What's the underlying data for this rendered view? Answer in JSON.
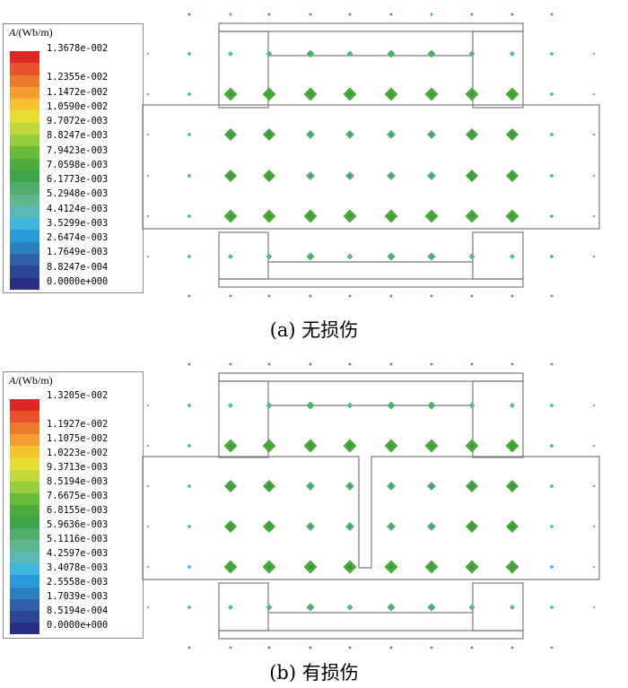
{
  "colorbar_colors": [
    "#dd2726",
    "#e8512c",
    "#ec7b2d",
    "#f29e30",
    "#f4c430",
    "#e8dd34",
    "#c2d83a",
    "#97cc3c",
    "#6bbb3b",
    "#4cad3e",
    "#3fa447",
    "#52ad6b",
    "#5fb691",
    "#5ab9b2",
    "#3fb6de",
    "#2a9bd8",
    "#2a7fc0",
    "#2e5fa8",
    "#2b4692",
    "#2a2f86"
  ],
  "panels": [
    {
      "id": "a",
      "legend_title_var": "A",
      "legend_title_unit": "/(Wb/m)",
      "ticks": [
        "1.3678e-002",
        "1.2355e-002",
        "1.1472e-002",
        "1.0590e-002",
        "9.7072e-003",
        "8.8247e-003",
        "7.9423e-003",
        "7.0598e-003",
        "6.1773e-003",
        "5.2948e-003",
        "4.4124e-003",
        "3.5299e-003",
        "2.6474e-003",
        "1.7649e-003",
        "8.8247e-004",
        "0.0000e+000"
      ],
      "caption": "(a) 无损伤",
      "damaged": false
    },
    {
      "id": "b",
      "legend_title_var": "A",
      "legend_title_unit": "/(Wb/m)",
      "ticks": [
        "1.3205e-002",
        "1.1927e-002",
        "1.1075e-002",
        "1.0223e-002",
        "9.3713e-003",
        "8.5194e-003",
        "7.6675e-003",
        "6.8155e-003",
        "5.9636e-003",
        "5.1116e-003",
        "4.2597e-003",
        "3.4078e-003",
        "2.5558e-003",
        "1.7039e-003",
        "8.5194e-004",
        "0.0000e+000"
      ],
      "caption": "(b) 有损伤",
      "damaged": true
    }
  ]
}
